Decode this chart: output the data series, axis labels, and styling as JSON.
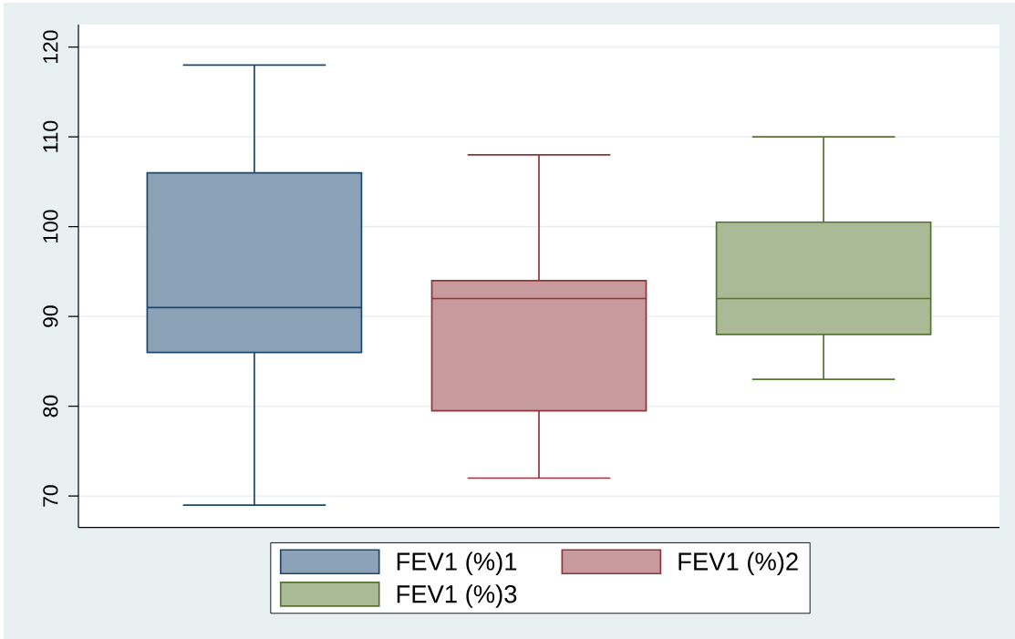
{
  "chart_data": {
    "type": "box",
    "categories": [
      null
    ],
    "series": [
      {
        "name": "FEV1 (%)1",
        "color": "#1a476f",
        "boxes": [
          {
            "low": 69,
            "q1": 86,
            "median": 91,
            "q3": 106,
            "high": 118
          }
        ]
      },
      {
        "name": "FEV1 (%)2",
        "color": "#90353b",
        "boxes": [
          {
            "low": 72,
            "q1": 79.5,
            "median": 92,
            "q3": 94,
            "high": 108
          }
        ]
      },
      {
        "name": "FEV1 (%)3",
        "color": "#55752f",
        "boxes": [
          {
            "low": 83,
            "q1": 88,
            "median": 92,
            "q3": 100.5,
            "high": 110
          }
        ]
      }
    ],
    "ylim": [
      66.5,
      122.5
    ],
    "yticks": [
      70,
      80,
      90,
      100,
      110,
      120
    ],
    "grid": "y",
    "legend": "bottom",
    "tick_labels": "y"
  }
}
